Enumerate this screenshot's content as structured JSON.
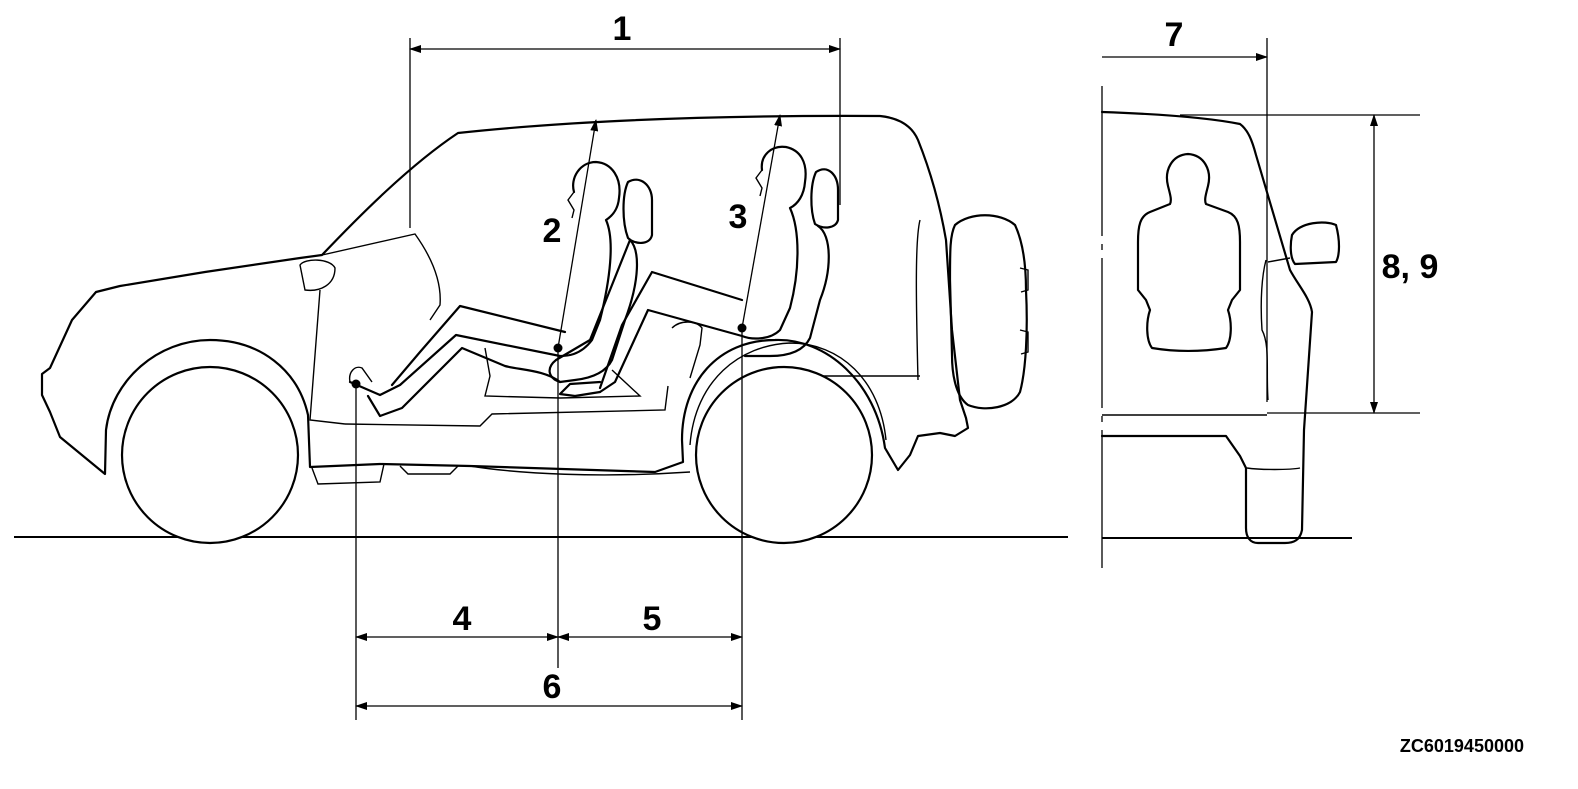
{
  "labels": {
    "l1": "1",
    "l2": "2",
    "l3": "3",
    "l4": "4",
    "l5": "5",
    "l6": "6",
    "l7": "7",
    "l89": "8, 9"
  },
  "figure_code": "ZC6019450000"
}
